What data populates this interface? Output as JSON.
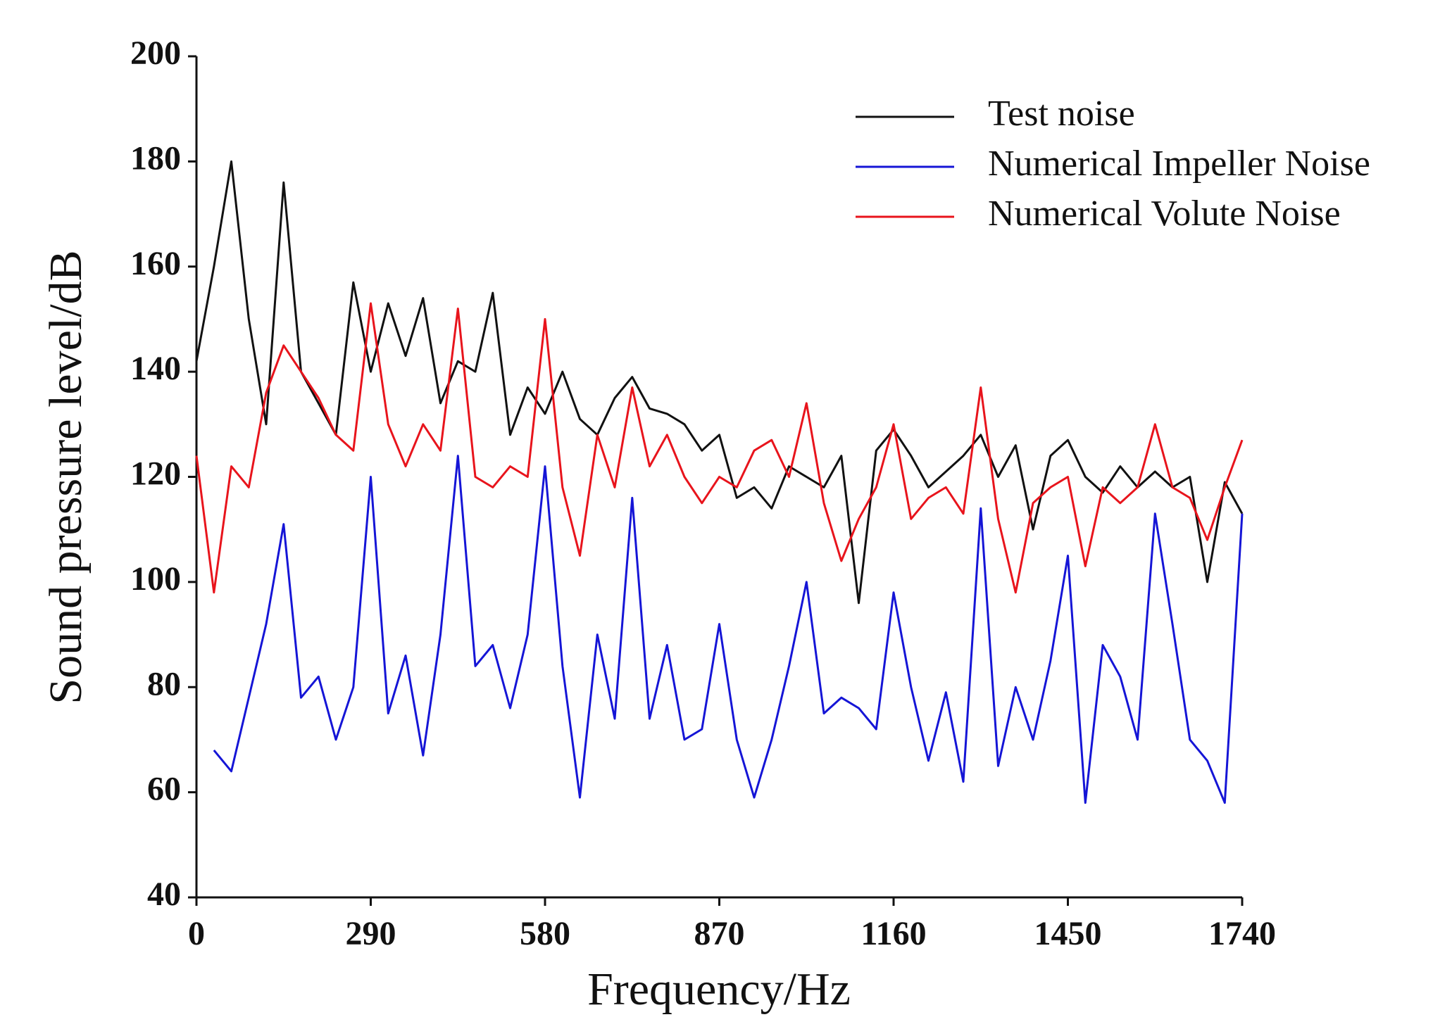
{
  "chart_data": {
    "type": "line",
    "x_label": "Frequency/Hz",
    "y_label": "Sound pressure level/dB",
    "x": [
      0,
      29,
      58,
      87,
      116,
      145,
      174,
      203,
      232,
      261,
      290,
      319,
      348,
      377,
      406,
      435,
      464,
      493,
      522,
      551,
      580,
      609,
      638,
      667,
      696,
      725,
      754,
      783,
      812,
      841,
      870,
      899,
      928,
      957,
      986,
      1015,
      1044,
      1073,
      1102,
      1131,
      1160,
      1189,
      1218,
      1247,
      1276,
      1305,
      1334,
      1363,
      1392,
      1421,
      1450,
      1479,
      1508,
      1537,
      1566,
      1595,
      1624,
      1653,
      1682,
      1711,
      1740
    ],
    "series": [
      {
        "name": "Test noise",
        "color": "#111111",
        "values": [
          142,
          160,
          180,
          150,
          130,
          176,
          140,
          134,
          128,
          157,
          140,
          153,
          143,
          154,
          134,
          142,
          140,
          155,
          128,
          137,
          132,
          140,
          131,
          128,
          135,
          139,
          133,
          132,
          130,
          125,
          128,
          116,
          118,
          114,
          122,
          120,
          118,
          124,
          96,
          125,
          129,
          124,
          118,
          121,
          124,
          128,
          120,
          126,
          110,
          124,
          127,
          120,
          117,
          122,
          118,
          121,
          118,
          120,
          100,
          119,
          113
        ]
      },
      {
        "name": "Numerical Impeller Noise",
        "color": "#1515d6",
        "values": [
          null,
          68,
          64,
          78,
          92,
          111,
          78,
          82,
          70,
          80,
          120,
          75,
          86,
          67,
          90,
          124,
          84,
          88,
          76,
          90,
          122,
          84,
          59,
          90,
          74,
          116,
          74,
          88,
          70,
          72,
          92,
          70,
          59,
          70,
          84,
          100,
          75,
          78,
          76,
          72,
          98,
          80,
          66,
          79,
          62,
          114,
          65,
          80,
          70,
          85,
          105,
          58,
          88,
          82,
          70,
          113,
          92,
          70,
          66,
          58,
          113
        ]
      },
      {
        "name": "Numerical Volute Noise",
        "color": "#e8141c",
        "values": [
          124,
          98,
          122,
          118,
          136,
          145,
          140,
          135,
          128,
          125,
          153,
          130,
          122,
          130,
          125,
          152,
          120,
          118,
          122,
          120,
          150,
          118,
          105,
          128,
          118,
          137,
          122,
          128,
          120,
          115,
          120,
          118,
          125,
          127,
          120,
          134,
          115,
          104,
          112,
          118,
          130,
          112,
          116,
          118,
          113,
          137,
          112,
          98,
          115,
          118,
          120,
          103,
          118,
          115,
          118,
          130,
          118,
          116,
          108,
          118,
          127
        ]
      }
    ],
    "xlim": [
      0,
      1740
    ],
    "xticks": [
      0,
      290,
      580,
      870,
      1160,
      1450,
      1740
    ],
    "ylim": [
      40,
      200
    ],
    "yticks": [
      40,
      60,
      80,
      100,
      120,
      140,
      160,
      180,
      200
    ],
    "legend": "upper right"
  }
}
